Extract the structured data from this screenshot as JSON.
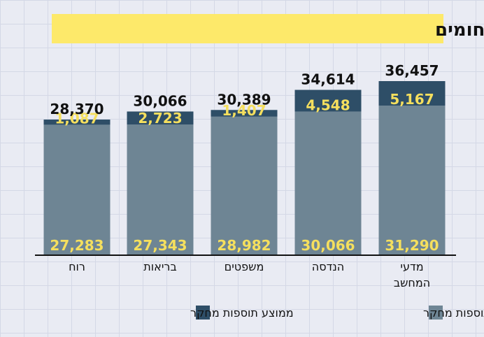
{
  "chart_data": {
    "type": "bar",
    "stacked": true,
    "title": "שכר חודשי ממוצע לפי תחומים",
    "categories": [
      "רוח",
      "בריאות",
      "משפטים",
      "הנדסה",
      "מדעי המחשב"
    ],
    "category_lines": [
      [
        "רוח"
      ],
      [
        "בריאות"
      ],
      [
        "משפטים"
      ],
      [
        "הנדסה"
      ],
      [
        "מדעי",
        "המחשב"
      ]
    ],
    "totals": [
      "28,370",
      "30,066",
      "30,389",
      "34,614",
      "36,457"
    ],
    "series": [
      {
        "name": "ממוצע שכר ללא תוספות מחקר",
        "color": "#6e8594",
        "values": [
          27283,
          27343,
          28982,
          30066,
          31290
        ],
        "labels": [
          "27,283",
          "27,343",
          "28,982",
          "30,066",
          "31,290"
        ]
      },
      {
        "name": "ממוצע תוספות מחקר",
        "color": "#2e4e67",
        "values": [
          1087,
          2723,
          1407,
          4548,
          5167
        ],
        "labels": [
          "1,087",
          "2,723",
          "1,407",
          "4,548",
          "5,167"
        ]
      }
    ],
    "ylim": [
      0,
      36457
    ],
    "grid": true,
    "legend": "bottom",
    "colors": {
      "title_bg": "#fde96a",
      "segment_label": "#f5df5e"
    }
  }
}
